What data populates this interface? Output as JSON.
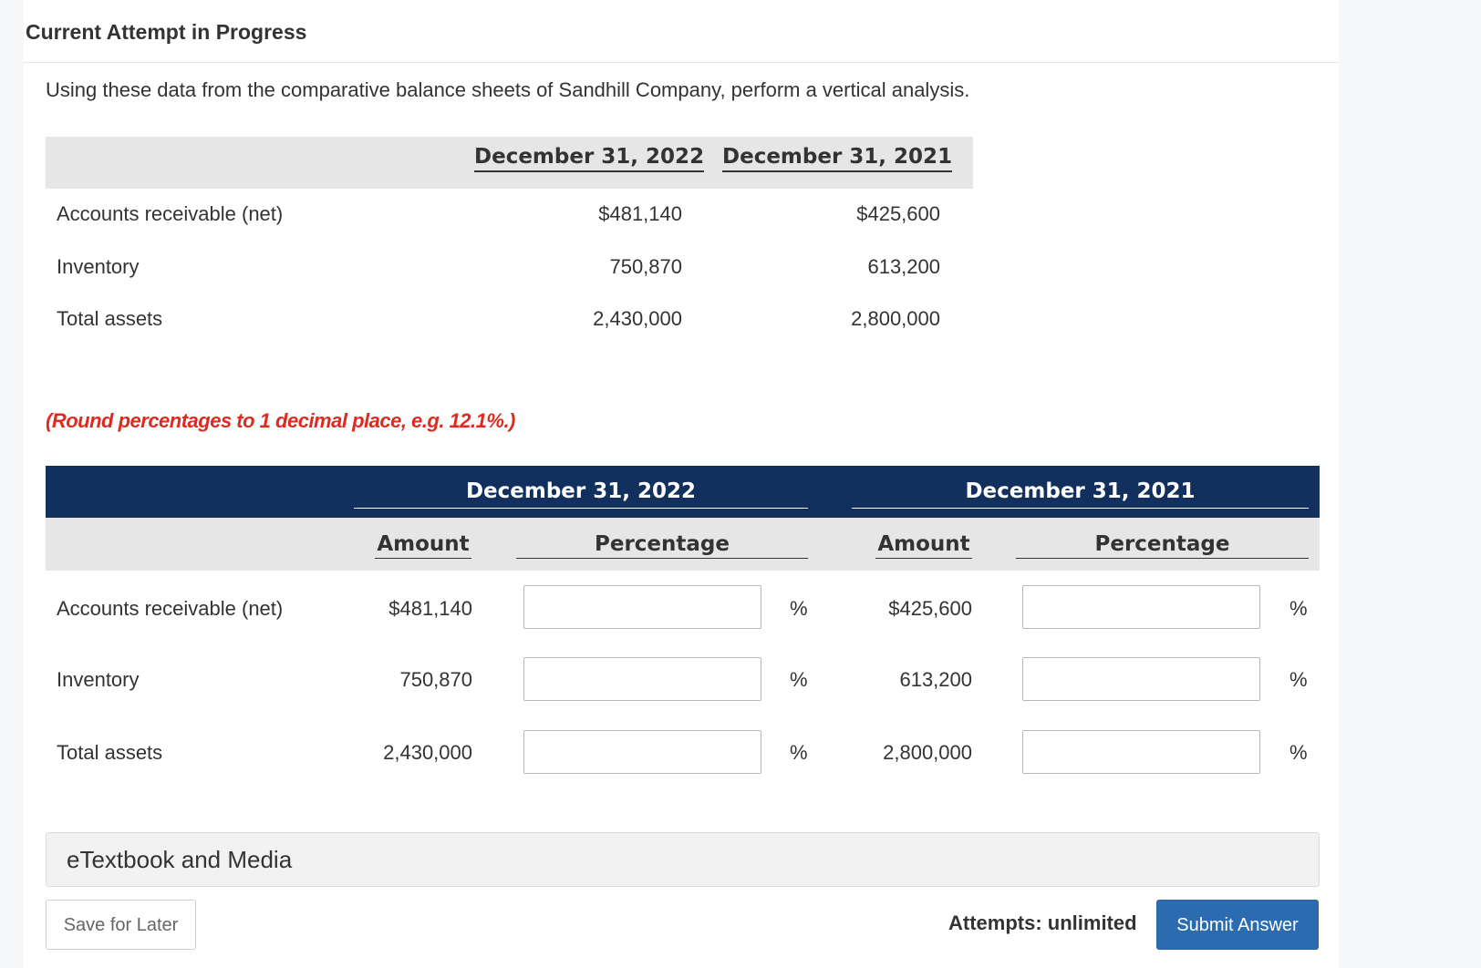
{
  "header": {
    "title": "Current Attempt in Progress"
  },
  "question": {
    "text": "Using these data from the comparative balance sheets of Sandhill Company, perform a vertical analysis."
  },
  "data_table": {
    "columns": [
      "December 31, 2022",
      "December 31, 2021"
    ],
    "rows": [
      {
        "label": "Accounts receivable (net)",
        "v2022": "$481,140",
        "v2021": "$425,600"
      },
      {
        "label": "Inventory",
        "v2022": "750,870",
        "v2021": "613,200"
      },
      {
        "label": "Total assets",
        "v2022": "2,430,000",
        "v2021": "2,800,000"
      }
    ]
  },
  "hint": "(Round percentages to 1 decimal place, e.g. 12.1%.)",
  "answer_table": {
    "groups": [
      "December 31, 2022",
      "December 31, 2021"
    ],
    "subheads": {
      "amount": "Amount",
      "percentage": "Percentage"
    },
    "percent_sign": "%",
    "rows": [
      {
        "label": "Accounts receivable (net)",
        "a2022": "$481,140",
        "p2022": "",
        "a2021": "$425,600",
        "p2021": ""
      },
      {
        "label": "Inventory",
        "a2022": "750,870",
        "p2022": "",
        "a2021": "613,200",
        "p2021": ""
      },
      {
        "label": "Total assets",
        "a2022": "2,430,000",
        "p2022": "",
        "a2021": "2,800,000",
        "p2021": ""
      }
    ]
  },
  "etextbook": {
    "label": "eTextbook and Media"
  },
  "footer": {
    "save_label": "Save for Later",
    "attempts_label": "Attempts: unlimited",
    "submit_label": "Submit Answer"
  },
  "colors": {
    "navy_header": "#12305e",
    "hint_red": "#dd2c1f",
    "submit_blue": "#2b6cb0"
  }
}
